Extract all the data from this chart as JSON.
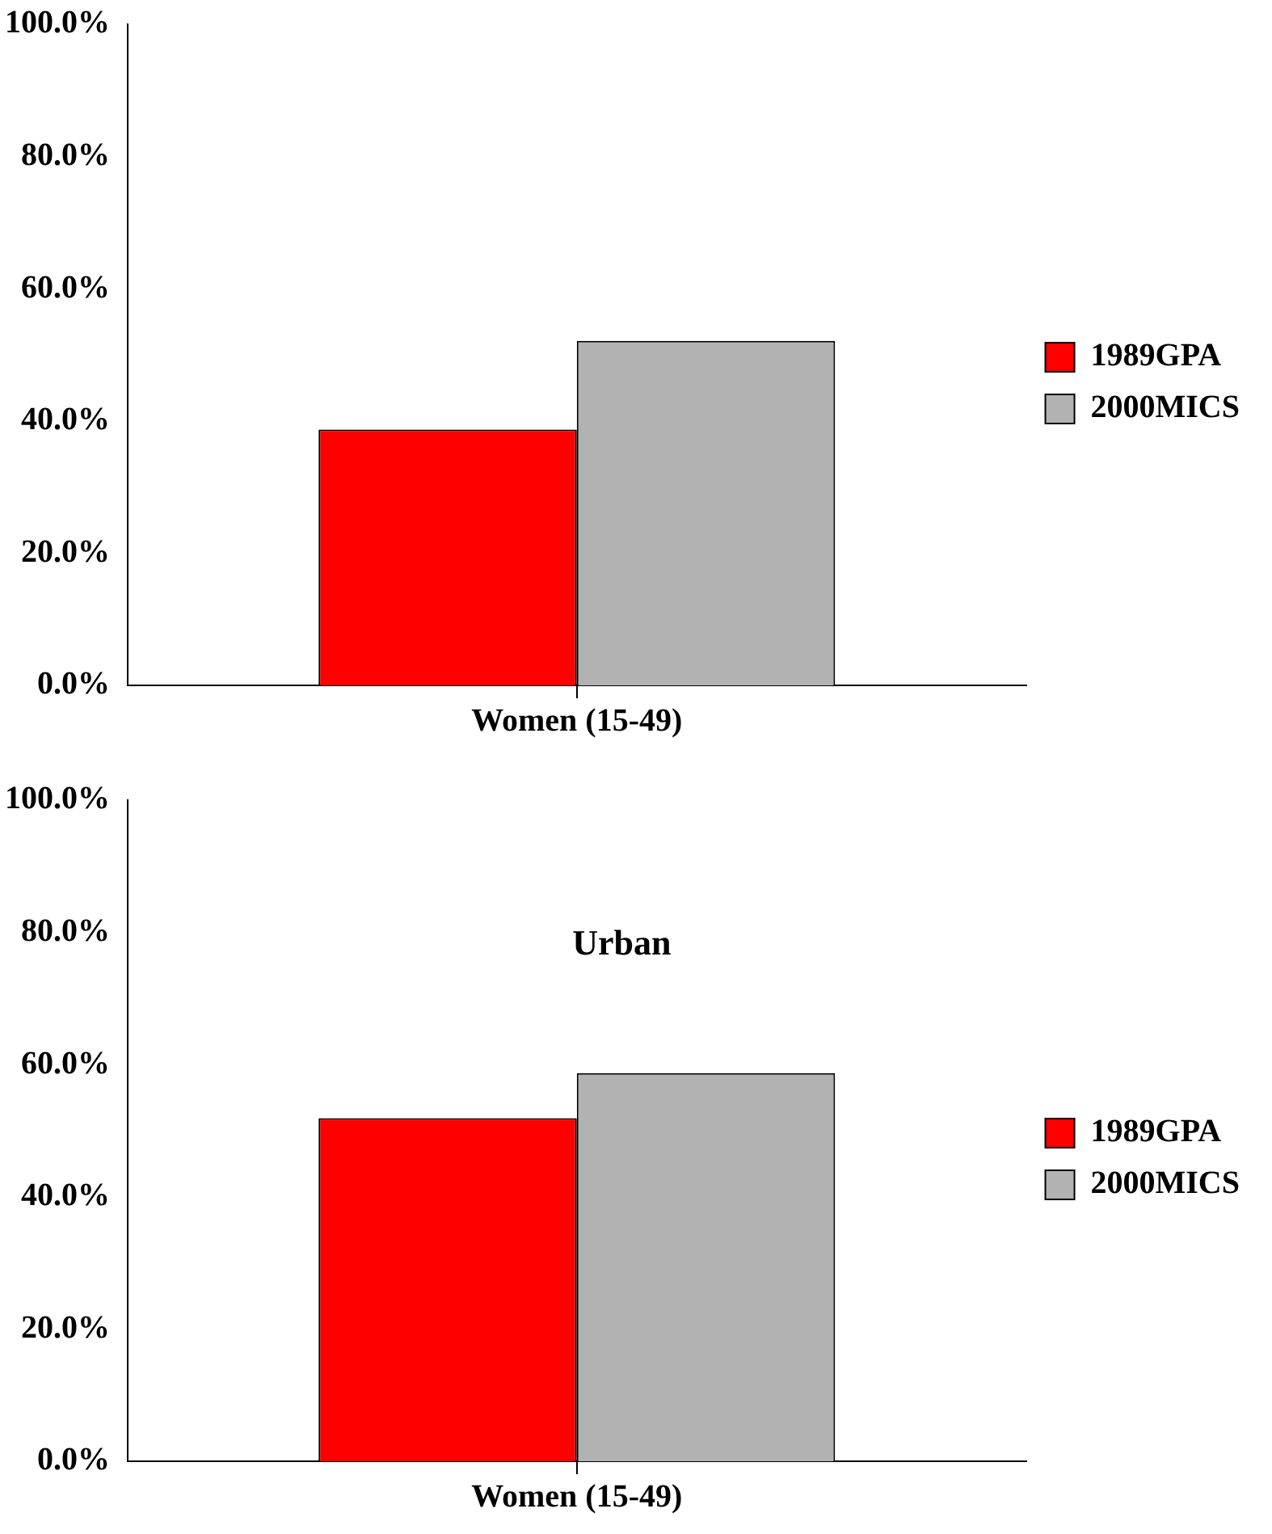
{
  "chart_data": [
    {
      "type": "bar",
      "categories": [
        "Women (15-49)"
      ],
      "series": [
        {
          "name": "1989GPA",
          "color": "#ff0000",
          "values": [
            38.7
          ]
        },
        {
          "name": "2000MICS",
          "color": "#b2b2b2",
          "values": [
            52.1
          ]
        }
      ],
      "ylim": [
        0,
        100
      ],
      "yticks": [
        {
          "value": 0,
          "label": "0.0%"
        },
        {
          "value": 20,
          "label": "20.0%"
        },
        {
          "value": 40,
          "label": "40.0%"
        },
        {
          "value": 60,
          "label": "60.0%"
        },
        {
          "value": 80,
          "label": "80.0%"
        },
        {
          "value": 100,
          "label": "100.0%"
        }
      ],
      "legend": "right"
    },
    {
      "type": "bar",
      "title": "Urban",
      "categories": [
        "Women (15-49)"
      ],
      "series": [
        {
          "name": "1989GPA",
          "color": "#ff0000",
          "values": [
            51.9
          ]
        },
        {
          "name": "2000MICS",
          "color": "#b2b2b2",
          "values": [
            58.7
          ]
        }
      ],
      "ylim": [
        0,
        100
      ],
      "yticks": [
        {
          "value": 0,
          "label": "0.0%"
        },
        {
          "value": 20,
          "label": "20.0%"
        },
        {
          "value": 40,
          "label": "40.0%"
        },
        {
          "value": 60,
          "label": "60.0%"
        },
        {
          "value": 80,
          "label": "80.0%"
        },
        {
          "value": 100,
          "label": "100.0%"
        }
      ],
      "legend": "right"
    }
  ]
}
